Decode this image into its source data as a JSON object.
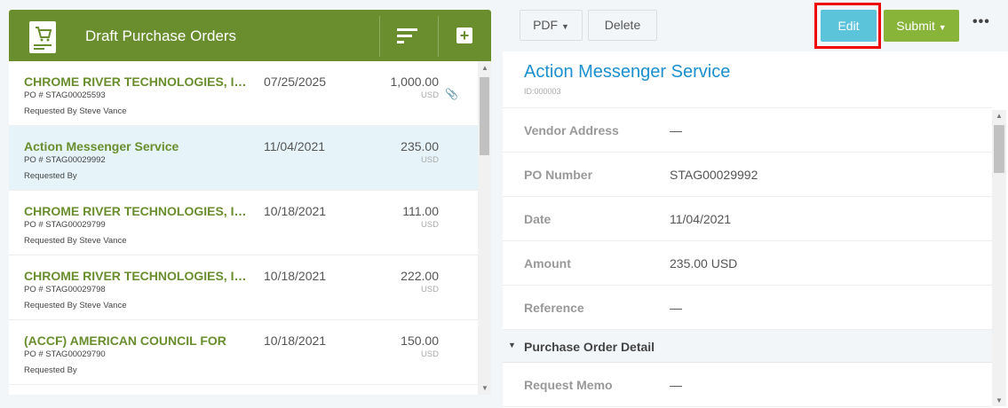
{
  "list": {
    "title": "Draft Purchase Orders",
    "icons": {
      "logo": "cart-icon",
      "sort": "sort-icon",
      "add": "plus-icon",
      "attachment": "paperclip-icon"
    },
    "items": [
      {
        "vendor": "CHROME RIVER TECHNOLOGIES, INC.",
        "po": "PO # STAG00025593",
        "requested": "Requested By Steve Vance",
        "date": "07/25/2025",
        "amount": "1,000.00",
        "currency": "USD",
        "attachment": true
      },
      {
        "vendor": "Action Messenger Service",
        "po": "PO # STAG00029992",
        "requested": "Requested By",
        "date": "11/04/2021",
        "amount": "235.00",
        "currency": "USD",
        "selected": true
      },
      {
        "vendor": "CHROME RIVER TECHNOLOGIES, INC.",
        "po": "PO # STAG00029799",
        "requested": "Requested By Steve Vance",
        "date": "10/18/2021",
        "amount": "111.00",
        "currency": "USD"
      },
      {
        "vendor": "CHROME RIVER TECHNOLOGIES, INC.",
        "po": "PO # STAG00029798",
        "requested": "Requested By Steve Vance",
        "date": "10/18/2021",
        "amount": "222.00",
        "currency": "USD"
      },
      {
        "vendor": "(ACCF) AMERICAN COUNCIL FOR",
        "po": "PO # STAG00029790",
        "requested": "Requested By",
        "date": "10/18/2021",
        "amount": "150.00",
        "currency": "USD"
      }
    ]
  },
  "toolbar": {
    "pdf": "PDF",
    "delete": "Delete",
    "edit": "Edit",
    "submit": "Submit",
    "more": "•••"
  },
  "detail": {
    "title": "Action Messenger Service",
    "id": "ID:000003",
    "fields": [
      {
        "label": "Vendor Address",
        "value": "—"
      },
      {
        "label": "PO Number",
        "value": "STAG00029992"
      },
      {
        "label": "Date",
        "value": "11/04/2021"
      },
      {
        "label": "Amount",
        "value": "235.00  USD"
      },
      {
        "label": "Reference",
        "value": "—"
      }
    ],
    "section": "Purchase Order Detail",
    "section_fields": [
      {
        "label": "Request Memo",
        "value": "—"
      }
    ]
  },
  "colors": {
    "brand": "#6a8e2e",
    "edit": "#5bc4da",
    "submit": "#88b43a",
    "title": "#1b8fcf",
    "highlight": "#e00000"
  }
}
